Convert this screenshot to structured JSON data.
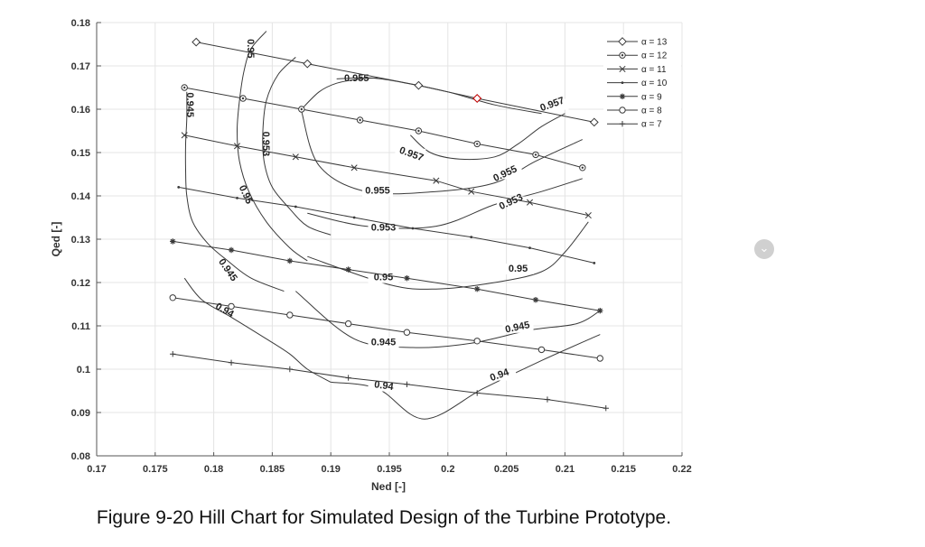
{
  "caption": "Figure 9-20 Hill Chart for Simulated Design of the Turbine Prototype.",
  "nav_icon": "chevron-down-icon",
  "colors": {
    "line": "#3a3a3a",
    "highlight": "#cc0000"
  },
  "chart_data": {
    "type": "line",
    "title": "",
    "xlabel": "Ned [-]",
    "ylabel": "Qed [-]",
    "xlim": [
      0.17,
      0.22
    ],
    "ylim": [
      0.08,
      0.18
    ],
    "xticks": [
      "0.17",
      "0.175",
      "0.18",
      "0.185",
      "0.19",
      "0.195",
      "0.2",
      "0.205",
      "0.21",
      "0.215",
      "0.22"
    ],
    "yticks": [
      "0.08",
      "0.09",
      "0.1",
      "0.11",
      "0.12",
      "0.13",
      "0.14",
      "0.15",
      "0.16",
      "0.17",
      "0.18"
    ],
    "grid": true,
    "legend_position": "top-right",
    "series": [
      {
        "name": "α = 13",
        "marker": "diamond",
        "x": [
          0.1785,
          0.188,
          0.1975,
          0.2025,
          0.2125
        ],
        "y": [
          0.1755,
          0.1705,
          0.1655,
          0.1625,
          0.157
        ]
      },
      {
        "name": "α = 12",
        "marker": "dot-circle",
        "x": [
          0.1775,
          0.1825,
          0.1875,
          0.1925,
          0.1975,
          0.2025,
          0.2075,
          0.2115
        ],
        "y": [
          0.165,
          0.1625,
          0.16,
          0.1575,
          0.155,
          0.152,
          0.1495,
          0.1465
        ]
      },
      {
        "name": "α = 11",
        "marker": "x",
        "x": [
          0.1775,
          0.182,
          0.187,
          0.192,
          0.199,
          0.202,
          0.207,
          0.212
        ],
        "y": [
          0.154,
          0.1515,
          0.149,
          0.1465,
          0.1435,
          0.141,
          0.1385,
          0.1355
        ]
      },
      {
        "name": "α = 10",
        "marker": "dot",
        "x": [
          0.177,
          0.182,
          0.187,
          0.192,
          0.197,
          0.202,
          0.207,
          0.2125
        ],
        "y": [
          0.142,
          0.1395,
          0.1375,
          0.135,
          0.1325,
          0.1305,
          0.128,
          0.1245
        ]
      },
      {
        "name": "α = 9",
        "marker": "star",
        "x": [
          0.1765,
          0.1815,
          0.1865,
          0.1915,
          0.1965,
          0.2025,
          0.2075,
          0.213
        ],
        "y": [
          0.1295,
          0.1275,
          0.125,
          0.123,
          0.121,
          0.1185,
          0.116,
          0.1135
        ]
      },
      {
        "name": "α = 8",
        "marker": "circle",
        "x": [
          0.1765,
          0.1815,
          0.1865,
          0.1915,
          0.1965,
          0.2025,
          0.208,
          0.213
        ],
        "y": [
          0.1165,
          0.1145,
          0.1125,
          0.1105,
          0.1085,
          0.1065,
          0.1045,
          0.1025
        ]
      },
      {
        "name": "α = 7",
        "marker": "plus",
        "x": [
          0.1765,
          0.1815,
          0.1865,
          0.1915,
          0.1965,
          0.2025,
          0.2085,
          0.2135
        ],
        "y": [
          0.1035,
          0.1015,
          0.1,
          0.098,
          0.0965,
          0.0945,
          0.093,
          0.091
        ]
      }
    ],
    "highlight_point": {
      "series": "α = 13",
      "x": 0.2025,
      "y": 0.1625
    },
    "contours": [
      {
        "label": "0.945",
        "labels": [
          {
            "text": "0.945",
            "x": 0.1777,
            "y": 0.161,
            "rotate": 90
          },
          {
            "text": "0.945",
            "x": 0.181,
            "y": 0.1225,
            "rotate": 55
          }
        ],
        "x": [
          0.1777,
          0.1777,
          0.1776,
          0.1776,
          0.1777,
          0.1782,
          0.1795,
          0.1812,
          0.1832,
          0.186
        ],
        "y": [
          0.164,
          0.158,
          0.152,
          0.146,
          0.14,
          0.134,
          0.129,
          0.125,
          0.121,
          0.118
        ]
      },
      {
        "label": "0.94",
        "labels": [
          {
            "text": "0.94",
            "x": 0.1808,
            "y": 0.113,
            "rotate": 30
          }
        ],
        "x": [
          0.1775,
          0.179,
          0.1815,
          0.1845,
          0.1865,
          0.188,
          0.19
        ],
        "y": [
          0.121,
          0.116,
          0.112,
          0.107,
          0.1035,
          0.1,
          0.097
        ]
      },
      {
        "label": "0.95",
        "labels": [
          {
            "text": "0.95",
            "x": 0.1829,
            "y": 0.174,
            "rotate": 90
          },
          {
            "text": "0.95",
            "x": 0.1825,
            "y": 0.14,
            "rotate": 65
          }
        ],
        "x": [
          0.1845,
          0.1832,
          0.1826,
          0.1822,
          0.182,
          0.1822,
          0.183,
          0.1845,
          0.1865,
          0.188
        ],
        "y": [
          0.178,
          0.174,
          0.169,
          0.162,
          0.155,
          0.148,
          0.141,
          0.134,
          0.128,
          0.125
        ]
      },
      {
        "label": "0.953",
        "labels": [
          {
            "text": "0.953",
            "x": 0.1842,
            "y": 0.152,
            "rotate": 90
          }
        ],
        "x": [
          0.187,
          0.1855,
          0.1845,
          0.1842,
          0.1843,
          0.185,
          0.1865,
          0.188,
          0.19
        ],
        "y": [
          0.172,
          0.168,
          0.162,
          0.155,
          0.148,
          0.142,
          0.137,
          0.133,
          0.131
        ]
      },
      {
        "label": "0.955",
        "labels": [
          {
            "text": "0.955",
            "x": 0.1922,
            "y": 0.1665,
            "rotate": 0
          }
        ],
        "x": [
          0.1875,
          0.189,
          0.1905,
          0.1925,
          0.194
        ],
        "y": [
          0.16,
          0.164,
          0.166,
          0.167,
          0.1672
        ]
      }
    ],
    "contour_labels_in_plot": [
      "0.955",
      "0.953",
      "0.95",
      "0.945",
      "0.94",
      "0.957",
      "0.955",
      "0.953",
      "0.95",
      "0.945",
      "0.94",
      "0.957"
    ]
  }
}
